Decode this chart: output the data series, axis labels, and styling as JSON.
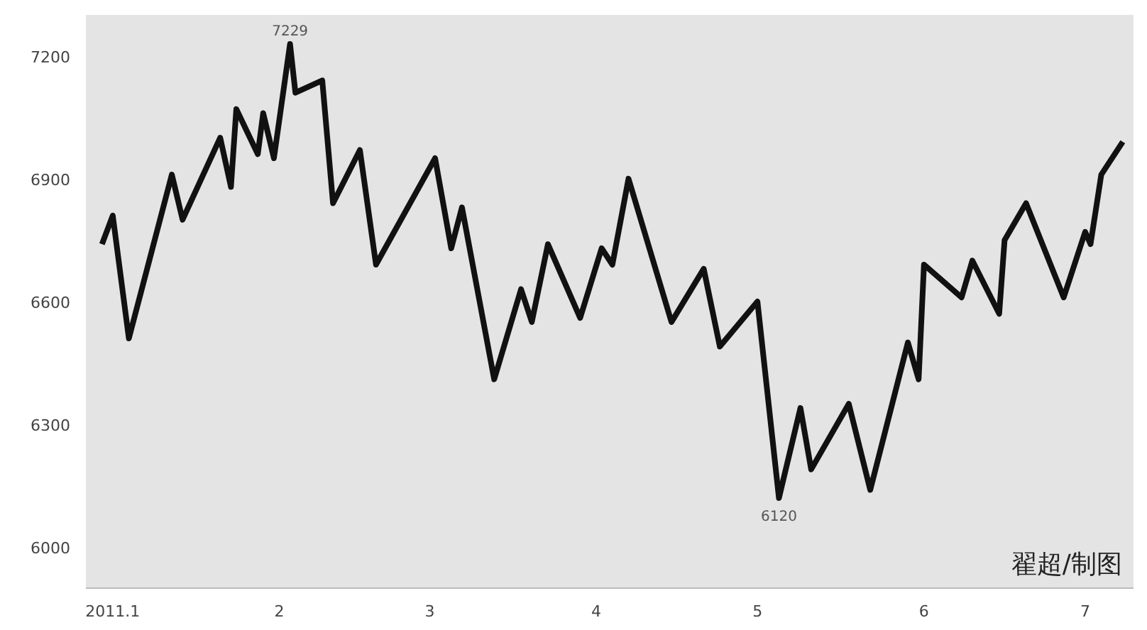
{
  "chart_data": {
    "type": "line",
    "x": [
      "2010-12-30",
      "2011-01-01",
      "2011-01-04",
      "2011-01-12",
      "2011-01-14",
      "2011-01-21",
      "2011-01-23",
      "2011-01-24",
      "2011-01-28",
      "2011-01-29",
      "2011-01-31",
      "2011-02-03",
      "2011-02-04",
      "2011-02-09",
      "2011-02-11",
      "2011-02-16",
      "2011-02-19",
      "2011-03-02",
      "2011-03-05",
      "2011-03-07",
      "2011-03-13",
      "2011-03-18",
      "2011-03-20",
      "2011-03-23",
      "2011-03-29",
      "2011-04-02",
      "2011-04-04",
      "2011-04-07",
      "2011-04-15",
      "2011-04-21",
      "2011-04-24",
      "2011-05-01",
      "2011-05-05",
      "2011-05-09",
      "2011-05-11",
      "2011-05-18",
      "2011-05-22",
      "2011-05-29",
      "2011-05-31",
      "2011-06-01",
      "2011-06-08",
      "2011-06-10",
      "2011-06-15",
      "2011-06-16",
      "2011-06-20",
      "2011-06-27",
      "2011-07-01",
      "2011-07-02",
      "2011-07-04",
      "2011-07-08"
    ],
    "series": [
      {
        "color": "#111111",
        "values": [
          6740,
          6810,
          6510,
          6910,
          6800,
          7000,
          6880,
          7070,
          6960,
          7060,
          6950,
          7229,
          7110,
          7140,
          6840,
          6970,
          6690,
          6950,
          6730,
          6830,
          6410,
          6630,
          6550,
          6740,
          6560,
          6730,
          6690,
          6900,
          6550,
          6680,
          6490,
          6600,
          6120,
          6340,
          6190,
          6350,
          6140,
          6500,
          6410,
          6690,
          6610,
          6700,
          6570,
          6750,
          6840,
          6610,
          6770,
          6740,
          6910,
          6990
        ]
      }
    ],
    "xlim": [
      "2010-12-27",
      "2011-07-10"
    ],
    "ylim": [
      5900,
      7300
    ],
    "xticks": [
      {
        "value": "2011-01-01",
        "label": "2011.1"
      },
      {
        "value": "2011-02-01",
        "label": "2"
      },
      {
        "value": "2011-03-01",
        "label": "3"
      },
      {
        "value": "2011-04-01",
        "label": "4"
      },
      {
        "value": "2011-05-01",
        "label": "5"
      },
      {
        "value": "2011-06-01",
        "label": "6"
      },
      {
        "value": "2011-07-01",
        "label": "7"
      }
    ],
    "yticks": [
      6000,
      6300,
      6600,
      6900,
      7200
    ],
    "marker": "none",
    "line_style": "solid",
    "annotations": [
      {
        "text": "7229",
        "x": "2011-02-03",
        "y": 7229
      },
      {
        "text": "6120",
        "x": "2011-05-05",
        "y": 6120
      },
      "翟超/制图"
    ]
  }
}
